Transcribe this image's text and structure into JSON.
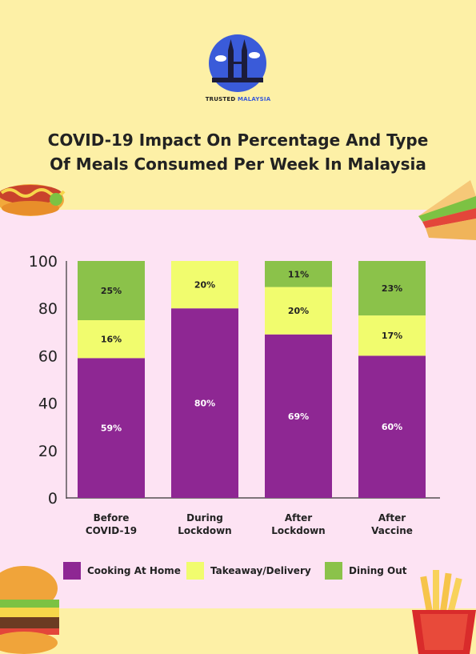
{
  "brand": {
    "logo_text_main": "TRUSTED ",
    "logo_text_accent": "MALAYSIA"
  },
  "title": {
    "line1": "COVID-19 Impact On Percentage And Type",
    "line2": "Of Meals Consumed Per Week In Malaysia"
  },
  "colors": {
    "cooking": "#8e2793",
    "takeaway": "#f1fc6e",
    "dining": "#8bc24a",
    "background": "#fdf0a6",
    "panel": "#fde3f3"
  },
  "chart_data": {
    "type": "bar",
    "stacked": true,
    "categories": [
      [
        "Before",
        "COVID-19"
      ],
      [
        "During",
        "Lockdown"
      ],
      [
        "After",
        "Lockdown"
      ],
      [
        "After",
        "Vaccine"
      ]
    ],
    "series": [
      {
        "name": "Cooking At Home",
        "values": [
          59,
          80,
          69,
          60
        ],
        "labels": [
          "59%",
          "80%",
          "69%",
          "60%"
        ]
      },
      {
        "name": "Takeaway/Delivery",
        "values": [
          16,
          20,
          20,
          17
        ],
        "labels": [
          "16%",
          "20%",
          "20%",
          "17%"
        ]
      },
      {
        "name": "Dining Out",
        "values": [
          25,
          0,
          11,
          23
        ],
        "labels": [
          "25%",
          "",
          "11%",
          "23%"
        ]
      }
    ],
    "ylim": [
      0,
      100
    ],
    "yticks": [
      0,
      20,
      40,
      60,
      80,
      100
    ],
    "legend_position": "bottom"
  },
  "legend": [
    {
      "label": "Cooking At Home",
      "color": "#8e2793"
    },
    {
      "label": "Takeaway/Delivery",
      "color": "#f1fc6e"
    },
    {
      "label": "Dining Out",
      "color": "#8bc24a"
    }
  ]
}
